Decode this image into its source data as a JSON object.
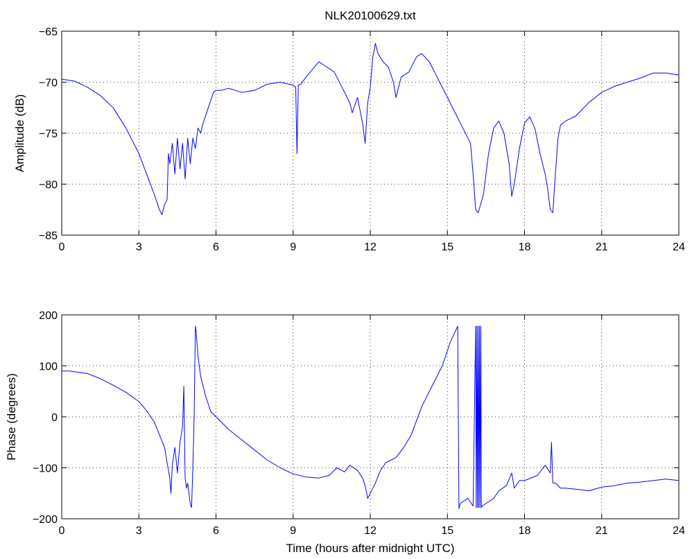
{
  "figure": {
    "title": "NLK20100629.txt"
  },
  "colors": {
    "series": "#0000ff",
    "axes": "#000000",
    "background": "#ffffff"
  },
  "chart_data": [
    {
      "type": "line",
      "title": "NLK20100629.txt",
      "xlabel": "",
      "ylabel": "Amplitude (dB)",
      "xlim": [
        0,
        24
      ],
      "ylim": [
        -85,
        -65
      ],
      "xticks": [
        0,
        3,
        6,
        9,
        12,
        15,
        18,
        21,
        24
      ],
      "yticks": [
        -85,
        -80,
        -75,
        -70,
        -65
      ],
      "grid": true,
      "series": [
        {
          "x": [
            0,
            0.5,
            1.0,
            1.5,
            2.0,
            2.5,
            3.0,
            3.3,
            3.6,
            3.8,
            3.9,
            4.0,
            4.1,
            4.15,
            4.2,
            4.3,
            4.4,
            4.5,
            4.6,
            4.7,
            4.8,
            4.9,
            5.0,
            5.1,
            5.2,
            5.3,
            5.4,
            5.5,
            5.7,
            5.9,
            6.0,
            6.2,
            6.5,
            7.0,
            7.5,
            8.0,
            8.5,
            9.0,
            9.1,
            9.15,
            9.2,
            9.3,
            9.5,
            9.8,
            10.0,
            10.3,
            10.6,
            10.9,
            11.2,
            11.3,
            11.5,
            11.7,
            11.8,
            11.9,
            12.0,
            12.1,
            12.2,
            12.3,
            12.5,
            12.7,
            12.9,
            13.0,
            13.2,
            13.5,
            13.8,
            14.0,
            14.3,
            14.6,
            15.0,
            15.3,
            15.6,
            15.9,
            16.0,
            16.1,
            16.2,
            16.4,
            16.6,
            16.8,
            17.0,
            17.2,
            17.4,
            17.5,
            17.6,
            17.8,
            18.0,
            18.2,
            18.4,
            18.6,
            18.8,
            18.9,
            19.0,
            19.1,
            19.2,
            19.3,
            19.4,
            19.6,
            20.0,
            20.5,
            21.0,
            21.5,
            22.0,
            22.5,
            23.0,
            23.5,
            24.0
          ],
          "y": [
            -69.7,
            -69.9,
            -70.5,
            -71.3,
            -72.5,
            -74.5,
            -77.0,
            -79.0,
            -81.0,
            -82.5,
            -83.0,
            -82.0,
            -81.5,
            -77.0,
            -78.0,
            -76.0,
            -79.0,
            -75.5,
            -78.5,
            -76.0,
            -79.5,
            -75.5,
            -78.0,
            -75.5,
            -76.5,
            -74.5,
            -75.0,
            -74.0,
            -72.5,
            -71.0,
            -70.8,
            -70.8,
            -70.6,
            -71.0,
            -70.8,
            -70.2,
            -70.0,
            -70.3,
            -70.5,
            -77.0,
            -70.3,
            -70.2,
            -69.5,
            -68.6,
            -68.0,
            -68.5,
            -69.0,
            -70.5,
            -72.0,
            -73.0,
            -71.5,
            -74.0,
            -76.0,
            -72.0,
            -70.5,
            -67.5,
            -66.2,
            -67.2,
            -68.0,
            -68.5,
            -70.0,
            -71.5,
            -69.5,
            -69.0,
            -67.5,
            -67.2,
            -68.0,
            -69.5,
            -71.5,
            -73.0,
            -74.5,
            -76.0,
            -79.0,
            -82.5,
            -82.8,
            -81.0,
            -77.0,
            -74.5,
            -73.8,
            -75.0,
            -78.0,
            -81.2,
            -80.0,
            -76.5,
            -74.0,
            -73.4,
            -74.5,
            -77.0,
            -79.0,
            -80.5,
            -82.5,
            -82.8,
            -79.0,
            -75.5,
            -74.2,
            -73.8,
            -73.3,
            -72.0,
            -71.0,
            -70.4,
            -70.0,
            -69.6,
            -69.1,
            -69.1,
            -69.3
          ]
        }
      ]
    },
    {
      "type": "line",
      "title": "",
      "xlabel": "Time (hours after midnight UTC)",
      "ylabel": "Phase (degrees)",
      "xlim": [
        0,
        24
      ],
      "ylim": [
        -200,
        200
      ],
      "xticks": [
        0,
        3,
        6,
        9,
        12,
        15,
        18,
        21,
        24
      ],
      "yticks": [
        -200,
        -100,
        0,
        100,
        200
      ],
      "grid": true,
      "series": [
        {
          "x": [
            0,
            0.3,
            0.7,
            1.0,
            1.5,
            2.0,
            2.5,
            3.0,
            3.3,
            3.6,
            3.8,
            4.0,
            4.1,
            4.2,
            4.25,
            4.3,
            4.4,
            4.5,
            4.6,
            4.7,
            4.75,
            4.8,
            4.85,
            4.9,
            5.0,
            5.05,
            5.1,
            5.15,
            5.2,
            5.22,
            5.3,
            5.4,
            5.6,
            5.8,
            6.0,
            6.5,
            7.0,
            7.5,
            8.0,
            8.5,
            9.0,
            9.5,
            10.0,
            10.4,
            10.7,
            11.0,
            11.2,
            11.5,
            11.7,
            11.8,
            11.9,
            12.0,
            12.2,
            12.4,
            12.6,
            12.8,
            13.0,
            13.3,
            13.6,
            14.0,
            14.4,
            14.8,
            15.1,
            15.4,
            15.45,
            15.5,
            15.8,
            16.0,
            16.1,
            16.12,
            16.15,
            16.17,
            16.2,
            16.22,
            16.25,
            16.27,
            16.3,
            16.32,
            16.35,
            16.5,
            16.8,
            17.0,
            17.3,
            17.5,
            17.6,
            17.8,
            18.0,
            18.5,
            18.8,
            19.0,
            19.05,
            19.1,
            19.2,
            19.4,
            19.6,
            20.0,
            20.5,
            21.0,
            21.5,
            22.0,
            22.5,
            23.0,
            23.5,
            24.0
          ],
          "y": [
            90,
            90,
            87,
            85,
            75,
            62,
            48,
            30,
            12,
            -10,
            -35,
            -60,
            -90,
            -120,
            -150,
            -95,
            -60,
            -110,
            -50,
            -20,
            60,
            -120,
            -140,
            -130,
            -170,
            -178,
            -100,
            0,
            178,
            170,
            120,
            80,
            40,
            10,
            0,
            -25,
            -45,
            -65,
            -85,
            -100,
            -112,
            -118,
            -120,
            -115,
            -100,
            -108,
            -95,
            -105,
            -120,
            -135,
            -160,
            -150,
            -130,
            -105,
            -90,
            -85,
            -80,
            -60,
            -35,
            20,
            60,
            100,
            145,
            178,
            -180,
            -170,
            -160,
            -175,
            178,
            -178,
            178,
            -178,
            178,
            -178,
            178,
            -178,
            178,
            -178,
            -175,
            -170,
            -160,
            -145,
            -135,
            -110,
            -140,
            -125,
            -125,
            -115,
            -95,
            -110,
            -50,
            -130,
            -130,
            -140,
            -140,
            -142,
            -145,
            -138,
            -135,
            -130,
            -128,
            -125,
            -122,
            -125
          ]
        }
      ]
    }
  ]
}
